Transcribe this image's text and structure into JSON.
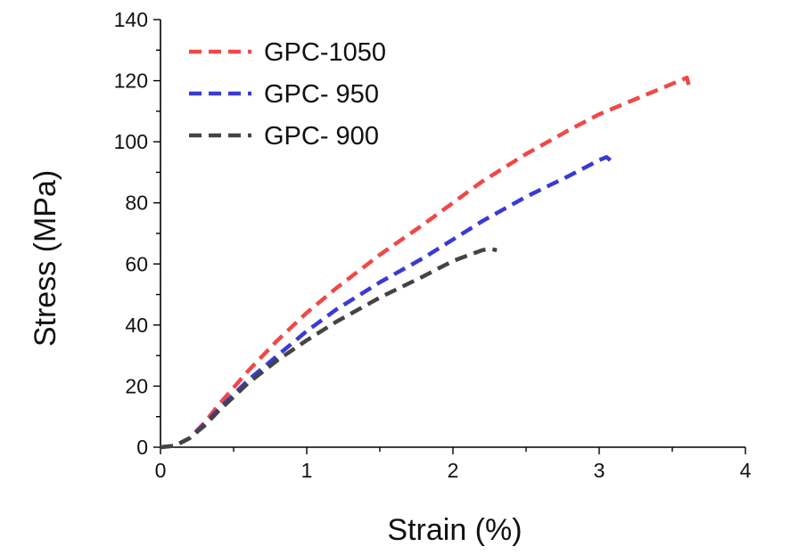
{
  "chart_data": {
    "type": "line",
    "title": "",
    "xlabel": "Strain (%)",
    "ylabel": "Stress (MPa)",
    "xlim": [
      0,
      4
    ],
    "ylim": [
      0,
      140
    ],
    "xticks": [
      "0",
      "1",
      "2",
      "3",
      "4"
    ],
    "yticks": [
      "0",
      "20",
      "40",
      "60",
      "80",
      "100",
      "120",
      "140"
    ],
    "grid": false,
    "legend_position": "top-left",
    "series": [
      {
        "name": "GPC-1050",
        "color": "#f04848",
        "x": [
          0,
          0.1,
          0.2,
          0.3,
          0.4,
          0.6,
          0.8,
          1.0,
          1.2,
          1.5,
          1.8,
          2.0,
          2.2,
          2.5,
          2.8,
          3.0,
          3.2,
          3.4,
          3.55,
          3.6,
          3.62
        ],
        "y": [
          0,
          0.5,
          3,
          8,
          14,
          25,
          35,
          44,
          52,
          63,
          73,
          80,
          87,
          96,
          104,
          109,
          113,
          117,
          120,
          121,
          117
        ]
      },
      {
        "name": "GPC- 950",
        "color": "#3a3ad6",
        "x": [
          0,
          0.1,
          0.2,
          0.3,
          0.4,
          0.6,
          0.8,
          1.0,
          1.2,
          1.5,
          1.8,
          2.0,
          2.2,
          2.5,
          2.8,
          3.0,
          3.05,
          3.1
        ],
        "y": [
          0,
          0.5,
          3,
          7.5,
          12.5,
          22,
          30,
          38,
          45,
          54,
          62,
          68,
          74,
          82,
          89,
          94,
          95,
          93
        ]
      },
      {
        "name": "GPC- 900",
        "color": "#444444",
        "x": [
          0,
          0.1,
          0.2,
          0.3,
          0.4,
          0.6,
          0.8,
          1.0,
          1.2,
          1.5,
          1.8,
          2.0,
          2.2,
          2.25,
          2.3
        ],
        "y": [
          0,
          0.5,
          3,
          7,
          12,
          21,
          28.5,
          35,
          41,
          49,
          56,
          61,
          64.5,
          65,
          64.5
        ]
      }
    ]
  }
}
